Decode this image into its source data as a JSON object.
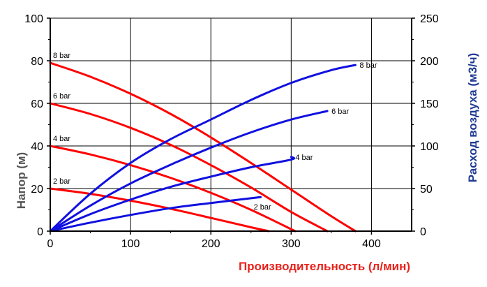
{
  "chart_data": {
    "type": "line",
    "xlabel": "Производительность (л/мин)",
    "ylabel_left": "Напор (м)",
    "ylabel_right": "Расход воздуха (м3/ч)",
    "xlim": [
      0,
      450
    ],
    "ylim_left": [
      0,
      100
    ],
    "ylim_right": [
      0,
      250
    ],
    "x_ticks": [
      "0",
      "100",
      "200",
      "300",
      "400"
    ],
    "y_left_ticks": [
      "0",
      "20",
      "40",
      "60",
      "80",
      "100"
    ],
    "y_right_ticks": [
      "0",
      "50",
      "100",
      "150",
      "200",
      "250"
    ],
    "grid": true,
    "colors": {
      "head": "#ff0000",
      "air": "#1010e0",
      "xlabel": "#e8221c",
      "ylabel_left": "#555555",
      "ylabel_right": "#1f3a93",
      "grid": "#000000"
    },
    "head_series": [
      {
        "label": "8 bar",
        "axis": "left",
        "x": [
          0,
          50,
          100,
          150,
          200,
          250,
          300,
          350,
          380
        ],
        "y": [
          79,
          72.5,
          64.5,
          55,
          44,
          32,
          19.5,
          7,
          0
        ]
      },
      {
        "label": "6 bar",
        "axis": "left",
        "x": [
          0,
          50,
          100,
          150,
          200,
          250,
          300,
          345
        ],
        "y": [
          60,
          55,
          48.5,
          40.5,
          31,
          20.5,
          9,
          0
        ]
      },
      {
        "label": "4 bar",
        "axis": "left",
        "x": [
          0,
          50,
          100,
          150,
          200,
          250,
          305
        ],
        "y": [
          40,
          36,
          31,
          25,
          18,
          10,
          0
        ]
      },
      {
        "label": "2 bar",
        "axis": "left",
        "x": [
          0,
          50,
          100,
          150,
          200,
          250,
          272
        ],
        "y": [
          20,
          17.5,
          14.3,
          10.5,
          6.2,
          1.8,
          0
        ]
      }
    ],
    "air_series": [
      {
        "label": "8 bar",
        "axis": "right",
        "x": [
          0,
          50,
          100,
          150,
          200,
          250,
          300,
          350,
          380
        ],
        "y": [
          0,
          44,
          80,
          108,
          131,
          154,
          174,
          189,
          195
        ]
      },
      {
        "label": "6 bar",
        "axis": "right",
        "x": [
          0,
          50,
          100,
          150,
          200,
          250,
          300,
          345
        ],
        "y": [
          0,
          30,
          56,
          78,
          98,
          116,
          131,
          141
        ]
      },
      {
        "label": "4 bar",
        "axis": "right",
        "x": [
          0,
          50,
          100,
          150,
          200,
          250,
          300,
          300
        ],
        "y": [
          0,
          20,
          37,
          52,
          64,
          75,
          84,
          87
        ]
      },
      {
        "label": "2 bar",
        "axis": "right",
        "x": [
          0,
          50,
          100,
          150,
          200,
          262
        ],
        "y": [
          0,
          10,
          19,
          27,
          33,
          40
        ]
      }
    ]
  }
}
